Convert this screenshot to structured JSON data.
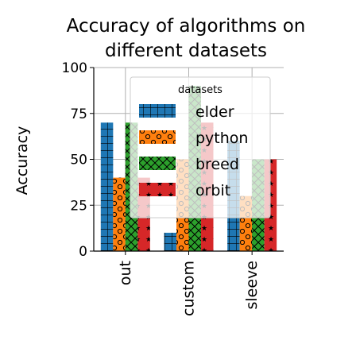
{
  "chart_data": {
    "type": "bar",
    "title_lines": [
      "Accuracy of algorithms on",
      "different datasets"
    ],
    "ylabel": "Accuracy",
    "xlabel": "",
    "ylim": [
      0,
      100
    ],
    "yticks": [
      0,
      25,
      50,
      75,
      100
    ],
    "categories": [
      "out",
      "custom",
      "sleeve"
    ],
    "legend_title": "datasets",
    "legend_position": "top-right",
    "grid": true,
    "series": [
      {
        "name": "elder",
        "values": [
          70,
          10,
          60
        ],
        "color": "#1f77b4",
        "hatch": "grid"
      },
      {
        "name": "python",
        "values": [
          40,
          50,
          30
        ],
        "color": "#ff7f0e",
        "hatch": "circles"
      },
      {
        "name": "breed",
        "values": [
          70,
          90,
          50
        ],
        "color": "#2ca02c",
        "hatch": "cross"
      },
      {
        "name": "orbit",
        "values": [
          40,
          70,
          50
        ],
        "color": "#d62728",
        "hatch": "stars"
      }
    ]
  }
}
